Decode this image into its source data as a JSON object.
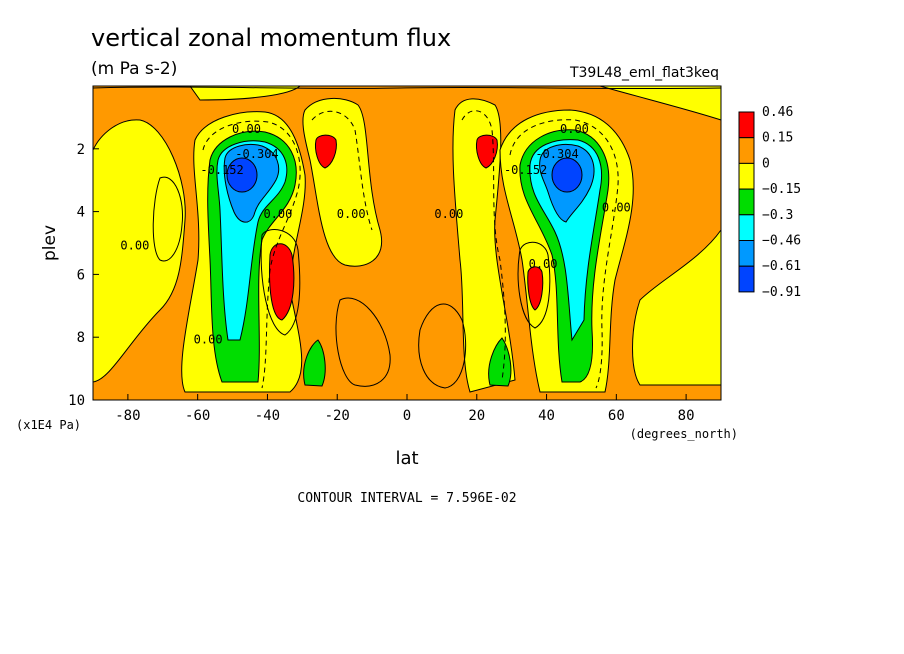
{
  "chart_data": {
    "type": "contour",
    "title": "vertical zonal momentum flux",
    "units": "(m Pa s-2)",
    "run_label": "T39L48_eml_flat3keq",
    "xlabel": "lat",
    "x_units": "(degrees_north)",
    "ylabel": "plev",
    "y_units": "(x1E4 Pa)",
    "xlim": [
      -90,
      90
    ],
    "ylim": [
      10,
      0
    ],
    "x_ticks": [
      -80,
      -60,
      -40,
      -20,
      0,
      20,
      40,
      60,
      80
    ],
    "y_ticks": [
      2,
      4,
      6,
      8,
      10
    ],
    "colorbar": [
      {
        "label": "0.46",
        "color": "#ff0000"
      },
      {
        "label": "0.15",
        "color": "#ff9900"
      },
      {
        "label": "0",
        "color": "#ffff00"
      },
      {
        "label": "−0.15",
        "color": "#00dd00"
      },
      {
        "label": "−0.3",
        "color": "#00ffff"
      },
      {
        "label": "−0.46",
        "color": "#0099ff"
      },
      {
        "label": "−0.61",
        "color": "#0044ff"
      },
      {
        "label": "−0.91",
        "color": null
      }
    ],
    "contour_labels": [
      {
        "text": "0.00",
        "lat": -46,
        "plev": 1.5
      },
      {
        "text": "-0.304",
        "lat": -43,
        "plev": 2.3
      },
      {
        "text": "-0.152",
        "lat": -53,
        "plev": 2.8
      },
      {
        "text": "0.00",
        "lat": -37,
        "plev": 4.2
      },
      {
        "text": "0.00",
        "lat": -16,
        "plev": 4.2
      },
      {
        "text": "0.00",
        "lat": -78,
        "plev": 5.2
      },
      {
        "text": "0.00",
        "lat": -57,
        "plev": 8.2
      },
      {
        "text": "0.00",
        "lat": 12,
        "plev": 4.2
      },
      {
        "text": "0.00",
        "lat": 48,
        "plev": 1.5
      },
      {
        "text": "-0.304",
        "lat": 43,
        "plev": 2.3
      },
      {
        "text": "-0.152",
        "lat": 34,
        "plev": 2.8
      },
      {
        "text": "0.00",
        "lat": 39,
        "plev": 5.8
      },
      {
        "text": "0.00",
        "lat": 60,
        "plev": 4.0
      }
    ],
    "footer": "CONTOUR INTERVAL = 7.596E-02"
  }
}
